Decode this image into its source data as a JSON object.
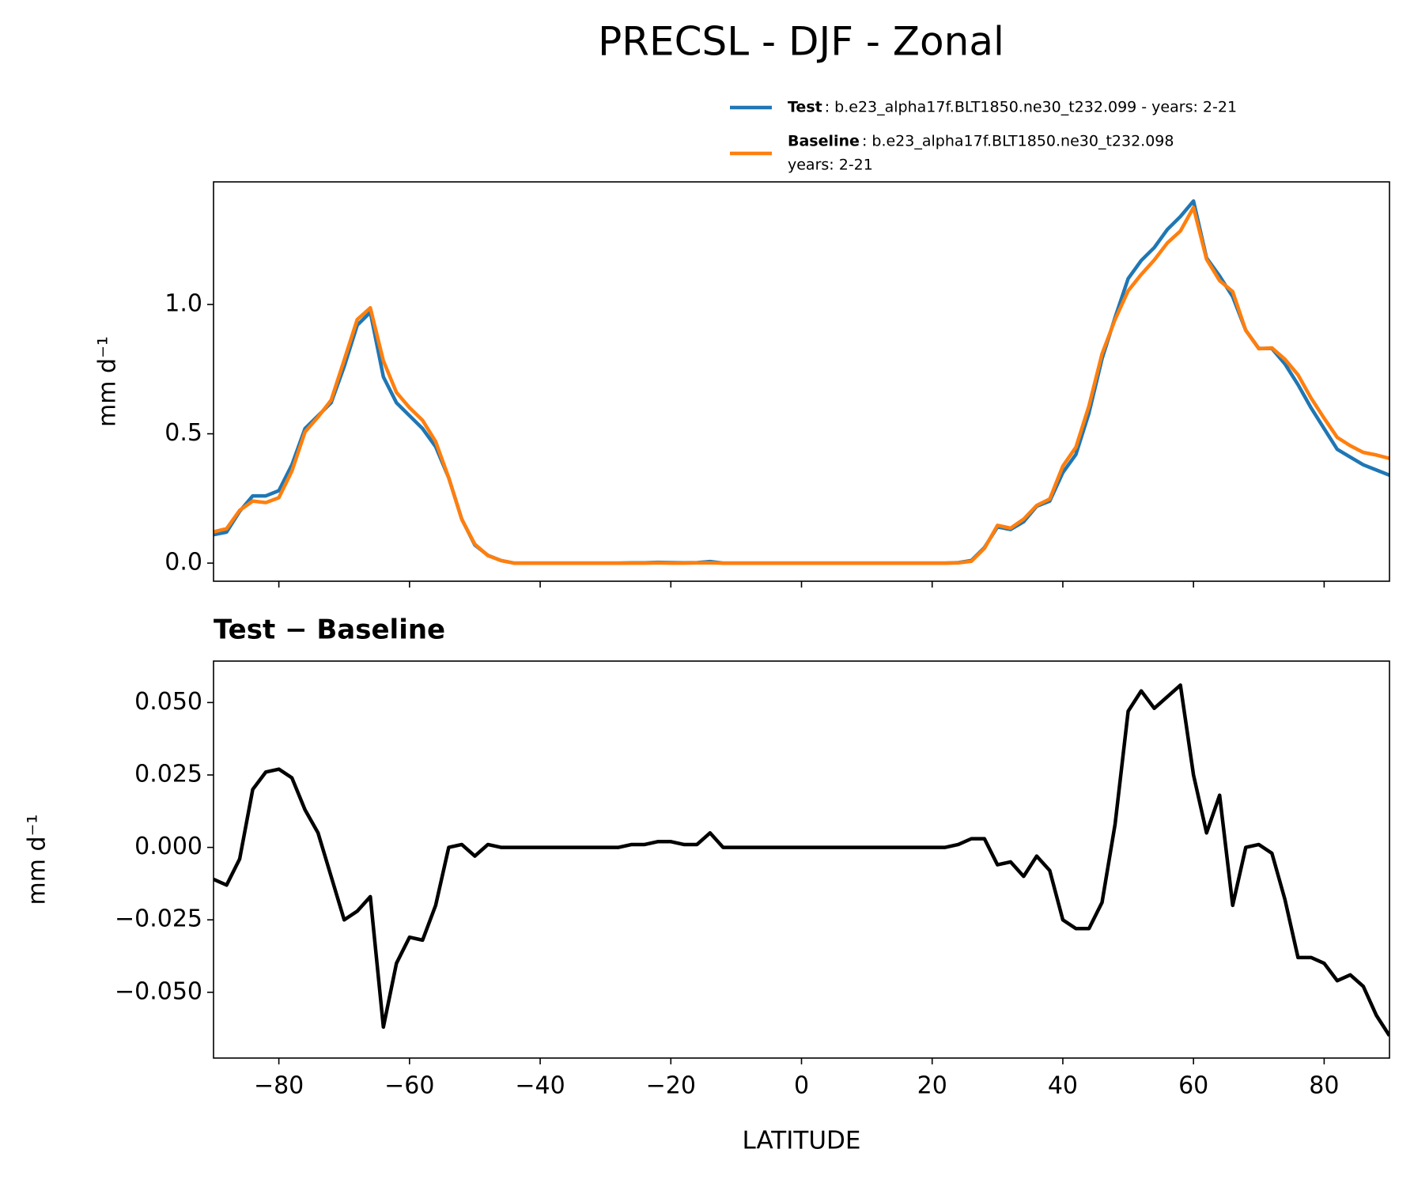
{
  "chart_data": [
    {
      "type": "line",
      "title": "PRECSL - DJF - Zonal",
      "ylabel": "mm d⁻¹",
      "x": [
        -90,
        -88,
        -86,
        -84,
        -82,
        -80,
        -78,
        -76,
        -74,
        -72,
        -70,
        -68,
        -66,
        -64,
        -62,
        -60,
        -58,
        -56,
        -54,
        -52,
        -50,
        -48,
        -46,
        -44,
        -42,
        -40,
        -38,
        -36,
        -34,
        -32,
        -30,
        -28,
        -26,
        -24,
        -22,
        -20,
        -18,
        -16,
        -14,
        -12,
        -10,
        -8,
        -6,
        -4,
        -2,
        0,
        2,
        4,
        6,
        8,
        10,
        12,
        14,
        16,
        18,
        20,
        22,
        24,
        26,
        28,
        30,
        32,
        34,
        36,
        38,
        40,
        42,
        44,
        46,
        48,
        50,
        52,
        54,
        56,
        58,
        60,
        62,
        64,
        66,
        68,
        70,
        72,
        74,
        76,
        78,
        80,
        82,
        84,
        86,
        88,
        90
      ],
      "series": [
        {
          "name": "Test",
          "label_lines": [
            ": b.e23_alpha17f.BLT1850.ne30_t232.099 - years: 2-21"
          ],
          "color": "#1f77b4",
          "values": [
            0.11,
            0.12,
            0.2,
            0.26,
            0.26,
            0.28,
            0.38,
            0.52,
            0.57,
            0.62,
            0.76,
            0.92,
            0.97,
            0.72,
            0.62,
            0.57,
            0.52,
            0.45,
            0.33,
            0.17,
            0.07,
            0.03,
            0.01,
            0,
            0,
            0,
            0,
            0,
            0,
            0,
            0,
            0,
            0.001,
            0.001,
            0.003,
            0.002,
            0.001,
            0.002,
            0.006,
            0,
            0,
            0,
            0,
            0,
            0,
            0,
            0,
            0,
            0,
            0,
            0,
            0,
            0,
            0,
            0,
            0,
            0,
            0.002,
            0.01,
            0.06,
            0.14,
            0.13,
            0.16,
            0.22,
            0.24,
            0.35,
            0.42,
            0.58,
            0.79,
            0.95,
            1.1,
            1.17,
            1.22,
            1.29,
            1.34,
            1.4,
            1.18,
            1.11,
            1.03,
            0.9,
            0.83,
            0.83,
            0.77,
            0.69,
            0.6,
            0.52,
            0.44,
            0.41,
            0.38,
            0.36,
            0.34
          ]
        },
        {
          "name": "Baseline",
          "label_lines": [
            ": b.e23_alpha17f.BLT1850.ne30_t232.098",
            "years: 2-21"
          ],
          "color": "#ff7f0e",
          "values": [
            0.121,
            0.133,
            0.204,
            0.24,
            0.234,
            0.253,
            0.356,
            0.507,
            0.565,
            0.63,
            0.785,
            0.942,
            0.987,
            0.782,
            0.66,
            0.601,
            0.552,
            0.47,
            0.33,
            0.169,
            0.073,
            0.029,
            0.01,
            0,
            0,
            0,
            0,
            0,
            0,
            0,
            0,
            0,
            0,
            0,
            0.001,
            0,
            0,
            0.001,
            0.001,
            0,
            0,
            0,
            0,
            0,
            0,
            0,
            0,
            0,
            0,
            0,
            0,
            0,
            0,
            0,
            0,
            0,
            0,
            0.001,
            0.007,
            0.057,
            0.146,
            0.135,
            0.17,
            0.223,
            0.248,
            0.375,
            0.448,
            0.608,
            0.809,
            0.942,
            1.053,
            1.116,
            1.172,
            1.238,
            1.284,
            1.375,
            1.175,
            1.092,
            1.05,
            0.9,
            0.829,
            0.832,
            0.788,
            0.728,
            0.638,
            0.56,
            0.486,
            0.454,
            0.428,
            0.418,
            0.405
          ]
        }
      ],
      "xlim": [
        -90,
        90
      ],
      "xticks": [
        -80,
        -60,
        -40,
        -20,
        0,
        20,
        40,
        60,
        80
      ],
      "ylim": [
        -0.07,
        1.474
      ],
      "yticks": [
        {
          "value": 0,
          "label": "0.0"
        },
        0.5,
        {
          "value": 1,
          "label": "1.0"
        }
      ]
    },
    {
      "type": "line",
      "subtitle": "Test − Baseline",
      "ylabel": "mm d⁻¹",
      "xlabel": "LATITUDE",
      "x": [
        -90,
        -88,
        -86,
        -84,
        -82,
        -80,
        -78,
        -76,
        -74,
        -72,
        -70,
        -68,
        -66,
        -64,
        -62,
        -60,
        -58,
        -56,
        -54,
        -52,
        -50,
        -48,
        -46,
        -44,
        -42,
        -40,
        -38,
        -36,
        -34,
        -32,
        -30,
        -28,
        -26,
        -24,
        -22,
        -20,
        -18,
        -16,
        -14,
        -12,
        -10,
        -8,
        -6,
        -4,
        -2,
        0,
        2,
        4,
        6,
        8,
        10,
        12,
        14,
        16,
        18,
        20,
        22,
        24,
        26,
        28,
        30,
        32,
        34,
        36,
        38,
        40,
        42,
        44,
        46,
        48,
        50,
        52,
        54,
        56,
        58,
        60,
        62,
        64,
        66,
        68,
        70,
        72,
        74,
        76,
        78,
        80,
        82,
        84,
        86,
        88,
        90
      ],
      "series": [
        {
          "color": "#000000",
          "values": [
            -0.011,
            -0.013,
            -0.004,
            0.02,
            0.026,
            0.027,
            0.024,
            0.013,
            0.005,
            -0.01,
            -0.025,
            -0.022,
            -0.017,
            -0.062,
            -0.04,
            -0.031,
            -0.032,
            -0.02,
            0,
            0.001,
            -0.003,
            0.001,
            0,
            0,
            0,
            0,
            0,
            0,
            0,
            0,
            0,
            0,
            0.001,
            0.001,
            0.002,
            0.002,
            0.001,
            0.001,
            0.005,
            0,
            0,
            0,
            0,
            0,
            0,
            0,
            0,
            0,
            0,
            0,
            0,
            0,
            0,
            0,
            0,
            0,
            0,
            0.001,
            0.003,
            0.003,
            -0.006,
            -0.005,
            -0.01,
            -0.003,
            -0.008,
            -0.025,
            -0.028,
            -0.028,
            -0.019,
            0.008,
            0.047,
            0.054,
            0.048,
            0.052,
            0.056,
            0.025,
            0.005,
            0.018,
            -0.02,
            0,
            0.001,
            -0.002,
            -0.018,
            -0.038,
            -0.038,
            -0.04,
            -0.046,
            -0.044,
            -0.048,
            -0.058,
            -0.065
          ]
        }
      ],
      "xlim": [
        -90,
        90
      ],
      "xticks": [
        {
          "value": -80,
          "label": "−80"
        },
        {
          "value": -60,
          "label": "−60"
        },
        {
          "value": -40,
          "label": "−40"
        },
        {
          "value": -20,
          "label": "−20"
        },
        0,
        20,
        40,
        60,
        80
      ],
      "ylim": [
        -0.0727,
        0.0643
      ],
      "yticks": [
        {
          "value": -0.05,
          "label": "−0.050"
        },
        {
          "value": -0.025,
          "label": "−0.025"
        },
        {
          "value": 0,
          "label": "0.000"
        },
        {
          "value": 0.025,
          "label": "0.025"
        },
        {
          "value": 0.05,
          "label": "0.050"
        }
      ]
    }
  ]
}
